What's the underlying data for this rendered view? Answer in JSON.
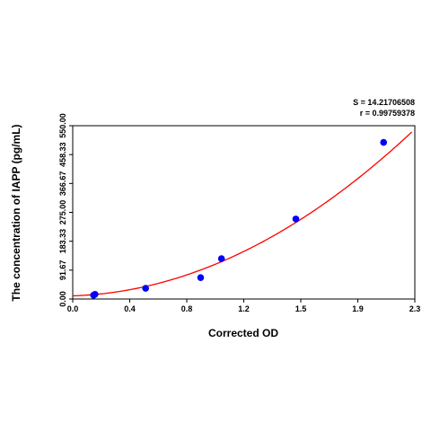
{
  "chart_data": {
    "type": "scatter",
    "title": "",
    "xlabel": "Corrected OD",
    "ylabel": "The concentration of IAPP (pg/mL)",
    "xlim": [
      0.0,
      2.3
    ],
    "ylim": [
      0.0,
      550.0
    ],
    "x_ticks": [
      "0.0",
      "0.4",
      "0.8",
      "1.2",
      "1.5",
      "1.9",
      "2.3"
    ],
    "y_ticks": [
      "0.00",
      "91.67",
      "183.33",
      "275.00",
      "366.67",
      "458.33",
      "550.00"
    ],
    "grid": false,
    "annotations": {
      "s_value": "S = 14.21706508",
      "r_value": "r = 0.99759378"
    },
    "series": [
      {
        "type": "scatter",
        "x": [
          0.14,
          0.15,
          0.49,
          0.86,
          1.0,
          1.5,
          2.09
        ],
        "y": [
          12,
          15,
          34,
          68,
          128,
          254,
          497
        ],
        "color": "#0000ff"
      },
      {
        "type": "line",
        "fit": "quadratic",
        "coefficients": [
          10,
          15,
          93.5
        ],
        "x_range": [
          0.0,
          2.28
        ],
        "color": "#ff0000"
      }
    ]
  }
}
